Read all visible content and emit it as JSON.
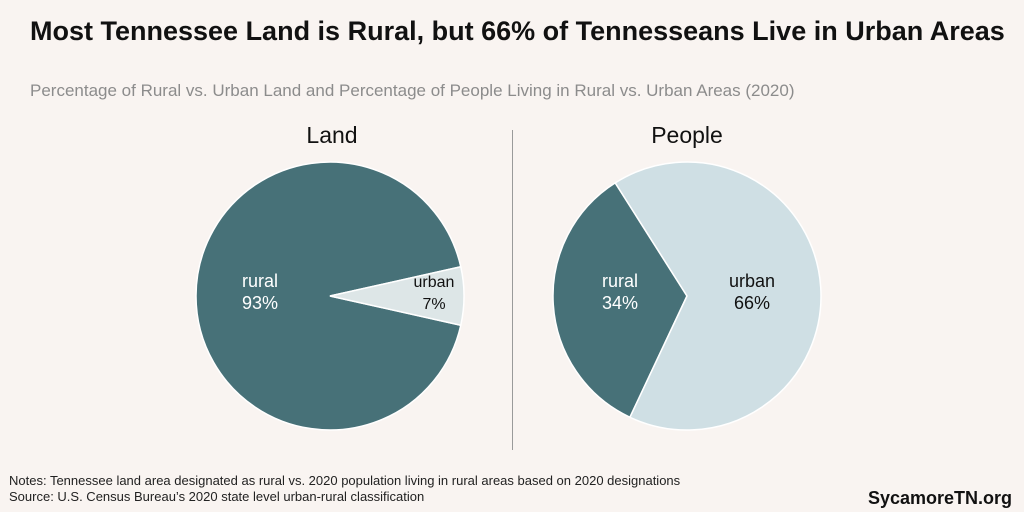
{
  "title": "Most Tennessee Land is Rural, but 66% of Tennesseans Live in Urban Areas",
  "subtitle": "Percentage of Rural vs. Urban Land and Percentage of People Living in Rural vs. Urban Areas (2020)",
  "notes": "Notes: Tennessee land area designated as rural vs. 2020 population living in rural areas based on 2020 designations",
  "source": "Source: U.S. Census Bureau’s 2020 state level urban-rural classification",
  "brand": "SycamoreTN.org",
  "colors": {
    "rural": "#477178",
    "urban_land": "#dde6e7",
    "urban_people": "#cfdfe4"
  },
  "chart_data": [
    {
      "type": "pie",
      "title": "Land",
      "slices": [
        {
          "label": "rural",
          "value": 93,
          "display": "93%",
          "color": "#477178"
        },
        {
          "label": "urban",
          "value": 7,
          "display": "7%",
          "color": "#dde6e7"
        }
      ]
    },
    {
      "type": "pie",
      "title": "People",
      "slices": [
        {
          "label": "rural",
          "value": 34,
          "display": "34%",
          "color": "#477178"
        },
        {
          "label": "urban",
          "value": 66,
          "display": "66%",
          "color": "#cfdfe4"
        }
      ]
    }
  ]
}
